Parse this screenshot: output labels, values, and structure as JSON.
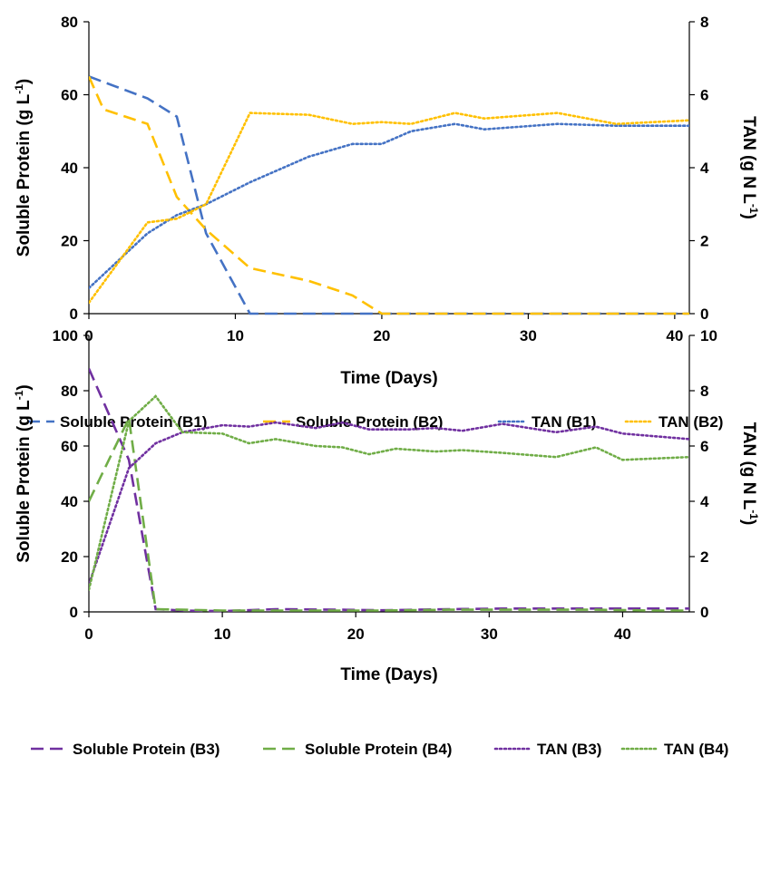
{
  "chart_data": [
    {
      "type": "line",
      "xlabel": "Time (Days)",
      "ylabel": "Soluble Protein (g L",
      "ylabel_sup": "-1",
      "ylabel_end": ")",
      "y2label": "TAN (g N L",
      "y2label_sup": "-1",
      "y2label_end": ")",
      "xlim": [
        0,
        41
      ],
      "ylim": [
        0,
        80
      ],
      "y2lim": [
        0,
        8
      ],
      "xticks": [
        "0",
        "10",
        "20",
        "30",
        "40"
      ],
      "yticks": [
        "0",
        "20",
        "40",
        "60",
        "80"
      ],
      "y2ticks": [
        "0",
        "2",
        "4",
        "6",
        "8"
      ],
      "legend_position": "bottom",
      "series": [
        {
          "name": "Soluble Protein (B1)",
          "axis": "left",
          "style": "dashed",
          "color": "#4472C4",
          "x": [
            0,
            4,
            6,
            8,
            11,
            15,
            20,
            25,
            30,
            41
          ],
          "y": [
            65,
            59,
            54,
            22,
            0,
            0,
            0,
            0,
            0,
            0
          ]
        },
        {
          "name": "Soluble Protein (B2)",
          "axis": "left",
          "style": "dashed",
          "color": "#FFC000",
          "x": [
            0,
            1,
            4,
            6,
            8,
            11,
            15,
            18,
            20,
            25,
            30,
            41
          ],
          "y": [
            65,
            56,
            52,
            32,
            23,
            12.5,
            9,
            5,
            0,
            0,
            0,
            0
          ]
        },
        {
          "name": "TAN (B1)",
          "axis": "right",
          "style": "dotted",
          "color": "#4472C4",
          "x": [
            0,
            4,
            6,
            8,
            11,
            15,
            18,
            20,
            22,
            25,
            27,
            32,
            36,
            41
          ],
          "y": [
            0.7,
            2.2,
            2.7,
            3.0,
            3.6,
            4.3,
            4.65,
            4.65,
            5.0,
            5.2,
            5.05,
            5.2,
            5.15,
            5.15
          ]
        },
        {
          "name": "TAN (B2)",
          "axis": "right",
          "style": "dotted",
          "color": "#FFC000",
          "x": [
            0,
            4,
            6,
            8,
            11,
            15,
            18,
            20,
            22,
            25,
            27,
            32,
            36,
            41
          ],
          "y": [
            0.3,
            2.5,
            2.6,
            3.0,
            5.5,
            5.45,
            5.2,
            5.25,
            5.2,
            5.5,
            5.35,
            5.5,
            5.2,
            5.3
          ]
        }
      ]
    },
    {
      "type": "line",
      "xlabel": "Time (Days)",
      "ylabel": "Soluble Protein (g L",
      "ylabel_sup": "-1",
      "ylabel_end": ")",
      "y2label": "TAN (g N L",
      "y2label_sup": "-1",
      "y2label_end": ")",
      "xlim": [
        0,
        45
      ],
      "ylim": [
        0,
        100
      ],
      "y2lim": [
        0,
        10
      ],
      "xticks": [
        "0",
        "10",
        "20",
        "30",
        "40"
      ],
      "yticks": [
        "0",
        "20",
        "40",
        "60",
        "80",
        "100"
      ],
      "y2ticks": [
        "0",
        "2",
        "4",
        "6",
        "8",
        "10"
      ],
      "legend_position": "bottom",
      "series": [
        {
          "name": "Soluble Protein (B3)",
          "axis": "left",
          "style": "dashed",
          "color": "#7030A0",
          "x": [
            0,
            3,
            5,
            7,
            10,
            14,
            19,
            22,
            27,
            31,
            35,
            38,
            42,
            45
          ],
          "y": [
            88,
            55,
            1,
            0.5,
            0.3,
            1,
            0.8,
            0.6,
            1,
            1.2,
            1.2,
            1.2,
            1.2,
            1.2
          ]
        },
        {
          "name": "Soluble Protein (B4)",
          "axis": "left",
          "style": "dashed",
          "color": "#70AD47",
          "x": [
            0,
            3,
            5,
            7,
            10,
            14,
            19,
            22,
            27,
            31,
            35,
            38,
            42,
            45
          ],
          "y": [
            40,
            70,
            1,
            0.8,
            0.5,
            0.5,
            0.5,
            0.5,
            0.8,
            0.8,
            0.8,
            0.8,
            0.5,
            0.5
          ]
        },
        {
          "name": "TAN (B3)",
          "axis": "right",
          "style": "dotted",
          "color": "#7030A0",
          "x": [
            0,
            3,
            5,
            7,
            10,
            12,
            14,
            17,
            19,
            21,
            24,
            26,
            28,
            31,
            35,
            38,
            40,
            45
          ],
          "y": [
            1.0,
            5.2,
            6.1,
            6.5,
            6.75,
            6.7,
            6.85,
            6.65,
            6.85,
            6.6,
            6.6,
            6.65,
            6.55,
            6.8,
            6.5,
            6.7,
            6.45,
            6.25
          ]
        },
        {
          "name": "TAN (B4)",
          "axis": "right",
          "style": "dotted",
          "color": "#70AD47",
          "x": [
            0,
            3,
            5,
            7,
            10,
            12,
            14,
            17,
            19,
            21,
            23,
            26,
            28,
            31,
            35,
            38,
            40,
            45
          ],
          "y": [
            0.8,
            6.9,
            7.8,
            6.5,
            6.45,
            6.1,
            6.25,
            6.0,
            5.95,
            5.7,
            5.9,
            5.8,
            5.85,
            5.75,
            5.6,
            5.95,
            5.5,
            5.6
          ]
        }
      ]
    }
  ]
}
